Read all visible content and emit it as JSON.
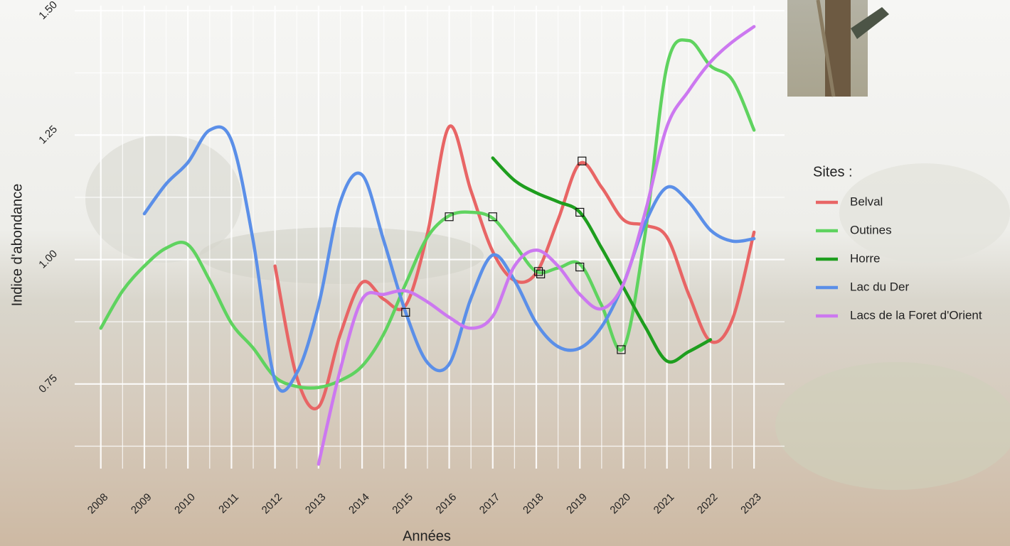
{
  "chart_data": {
    "type": "line",
    "x_label": "Années",
    "y_label": "Indice d'abondance",
    "legend_title": "Sites :",
    "legend": "right",
    "grid": true,
    "xlim": [
      2007.4,
      2023.7
    ],
    "xticks": [
      2008,
      2009,
      2010,
      2011,
      2012,
      2013,
      2014,
      2015,
      2016,
      2017,
      2018,
      2019,
      2020,
      2021,
      2022,
      2023
    ],
    "ylim": [
      0.58,
      1.51
    ],
    "yticks": [
      {
        "value": 0.75,
        "label": "0.75"
      },
      {
        "value": 1.0,
        "label": "1.00"
      },
      {
        "value": 1.25,
        "label": "1.25"
      },
      {
        "value": 1.5,
        "label": "1.50"
      }
    ],
    "minor_yticks": [
      0.625,
      0.875,
      1.125,
      1.375
    ],
    "series": [
      {
        "name": "Belval",
        "color": "#e86565",
        "x": [
          2012,
          2012.5,
          2013,
          2013.5,
          2014,
          2014.5,
          2015,
          2015.5,
          2016,
          2016.5,
          2017,
          2017.5,
          2018,
          2018.5,
          2019,
          2019.5,
          2020,
          2020.5,
          2021,
          2021.5,
          2022,
          2022.5,
          2023
        ],
        "values": [
          0.987,
          0.764,
          0.704,
          0.85,
          0.954,
          0.92,
          0.908,
          1.052,
          1.267,
          1.138,
          1.016,
          0.958,
          0.973,
          1.08,
          1.193,
          1.145,
          1.08,
          1.069,
          1.045,
          0.93,
          0.836,
          0.879,
          1.055
        ]
      },
      {
        "name": "Outines",
        "color": "#5fd35f",
        "x": [
          2008,
          2008.5,
          2009,
          2009.5,
          2010,
          2010.5,
          2011,
          2011.5,
          2012,
          2012.5,
          2013,
          2013.5,
          2014,
          2014.5,
          2015,
          2015.5,
          2016,
          2016.5,
          2017,
          2017.5,
          2018,
          2018.5,
          2019,
          2019.5,
          2020,
          2020.5,
          2021,
          2021.5,
          2022,
          2022.5,
          2023
        ],
        "values": [
          0.862,
          0.937,
          0.987,
          1.023,
          1.03,
          0.958,
          0.872,
          0.822,
          0.764,
          0.745,
          0.743,
          0.757,
          0.786,
          0.851,
          0.951,
          1.045,
          1.088,
          1.095,
          1.083,
          1.03,
          0.976,
          0.983,
          0.991,
          0.908,
          0.822,
          1.052,
          1.389,
          1.44,
          1.389,
          1.361,
          1.26
        ]
      },
      {
        "name": "Horre",
        "color": "#1e9e1e",
        "x": [
          2017,
          2017.5,
          2018,
          2018.5,
          2019,
          2019.5,
          2020,
          2020.5,
          2021,
          2021.5,
          2022
        ],
        "values": [
          1.204,
          1.159,
          1.134,
          1.116,
          1.095,
          1.023,
          0.944,
          0.865,
          0.796,
          0.815,
          0.839
        ]
      },
      {
        "name": "Lac du Der",
        "color": "#5b8fe8",
        "x": [
          2009,
          2009.5,
          2010,
          2010.5,
          2011,
          2011.5,
          2012,
          2012.5,
          2013,
          2013.5,
          2014,
          2014.5,
          2015,
          2015.5,
          2016,
          2016.5,
          2017,
          2017.5,
          2018,
          2018.5,
          2019,
          2019.5,
          2020,
          2020.5,
          2021,
          2021.5,
          2022,
          2022.5,
          2023
        ],
        "values": [
          1.092,
          1.152,
          1.195,
          1.26,
          1.239,
          1.037,
          0.757,
          0.772,
          0.908,
          1.116,
          1.17,
          1.037,
          0.894,
          0.793,
          0.79,
          0.922,
          1.009,
          0.958,
          0.872,
          0.825,
          0.822,
          0.865,
          0.951,
          1.073,
          1.145,
          1.116,
          1.059,
          1.037,
          1.042
        ]
      },
      {
        "name": "Lacs de la Foret d'Orient",
        "color": "#cc78f0",
        "x": [
          2013,
          2013.5,
          2014,
          2014.5,
          2015,
          2015.5,
          2016,
          2016.5,
          2017,
          2017.5,
          2018,
          2018.5,
          2019,
          2019.5,
          2020,
          2020.5,
          2021,
          2021.5,
          2022,
          2022.5,
          2023
        ],
        "values": [
          0.589,
          0.779,
          0.92,
          0.93,
          0.937,
          0.915,
          0.884,
          0.862,
          0.886,
          0.987,
          1.019,
          0.987,
          0.93,
          0.901,
          0.951,
          1.095,
          1.267,
          1.339,
          1.397,
          1.437,
          1.468
        ]
      }
    ],
    "markers": {
      "x": [
        2015,
        2016,
        2017,
        2018.05,
        2018.1,
        2019.05,
        2019,
        2019,
        2019.95
      ],
      "values": [
        0.894,
        1.086,
        1.086,
        0.976,
        0.971,
        1.198,
        1.095,
        0.985,
        0.819
      ]
    }
  }
}
